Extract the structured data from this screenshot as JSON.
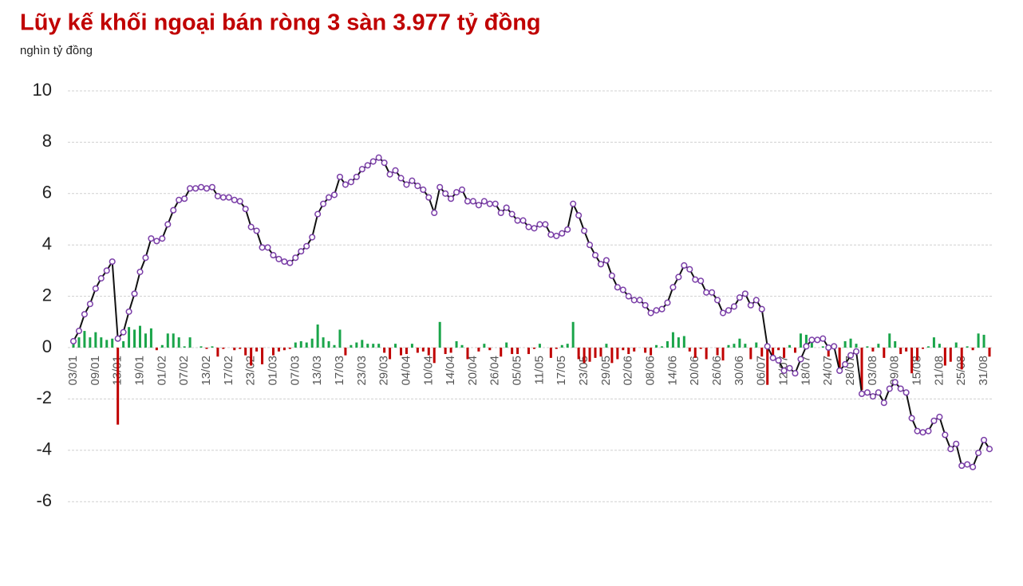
{
  "chart_data": {
    "type": "combo",
    "title": "Lũy kế khối ngoại bán ròng 3 sàn 3.977 tỷ đồng",
    "subtitle": "nghìn tỷ đồng",
    "categories": [
      "03/01",
      null,
      null,
      null,
      "09/01",
      null,
      null,
      null,
      "13/01",
      null,
      null,
      null,
      "19/01",
      null,
      null,
      null,
      "01/02",
      null,
      null,
      null,
      "07/02",
      null,
      null,
      null,
      "13/02",
      null,
      null,
      null,
      "17/02",
      null,
      null,
      null,
      "23/02",
      null,
      null,
      null,
      "01/03",
      null,
      null,
      null,
      "07/03",
      null,
      null,
      null,
      "13/03",
      null,
      null,
      null,
      "17/03",
      null,
      null,
      null,
      "23/03",
      null,
      null,
      null,
      "29/03",
      null,
      null,
      null,
      "04/04",
      null,
      null,
      null,
      "10/04",
      null,
      null,
      null,
      "14/04",
      null,
      null,
      null,
      "20/04",
      null,
      null,
      null,
      "26/04",
      null,
      null,
      null,
      "05/05",
      null,
      null,
      null,
      "11/05",
      null,
      null,
      null,
      "17/05",
      null,
      null,
      null,
      "23/05",
      null,
      null,
      null,
      "29/05",
      null,
      null,
      null,
      "02/06",
      null,
      null,
      null,
      "08/06",
      null,
      null,
      null,
      "14/06",
      null,
      null,
      null,
      "20/06",
      null,
      null,
      null,
      "26/06",
      null,
      null,
      null,
      "30/06",
      null,
      null,
      null,
      "06/07",
      null,
      null,
      null,
      "12/07",
      null,
      null,
      null,
      "18/07",
      null,
      null,
      null,
      "24/07",
      null,
      null,
      null,
      "28/07",
      null,
      null,
      null,
      "03/08",
      null,
      null,
      null,
      "09/08",
      null,
      null,
      null,
      "15/08",
      null,
      null,
      null,
      "21/08",
      null,
      null,
      null,
      "25/08",
      null,
      null,
      null,
      "31/08",
      null
    ],
    "series": [
      {
        "type": "bar",
        "color": "#1aa54a",
        "negative_color": "#c00000",
        "values": [
          0.25,
          0.4,
          0.65,
          0.4,
          0.6,
          0.4,
          0.3,
          0.35,
          -3.0,
          0.25,
          0.8,
          0.7,
          0.85,
          0.55,
          0.75,
          -0.1,
          0.1,
          0.55,
          0.55,
          0.4,
          0.05,
          0.4,
          0,
          0.05,
          -0.05,
          0.05,
          -0.35,
          -0.05,
          0,
          -0.1,
          -0.05,
          -0.3,
          -0.7,
          -0.15,
          -0.65,
          0,
          -0.3,
          -0.15,
          -0.1,
          -0.05,
          0.2,
          0.25,
          0.2,
          0.35,
          0.9,
          0.4,
          0.25,
          0.1,
          0.7,
          -0.3,
          0.1,
          0.2,
          0.3,
          0.15,
          0.15,
          0.15,
          -0.2,
          -0.45,
          0.15,
          -0.3,
          -0.25,
          0.15,
          -0.2,
          -0.15,
          -0.3,
          -0.6,
          1.0,
          -0.25,
          -0.2,
          0.25,
          0.1,
          -0.45,
          0,
          -0.15,
          0.15,
          -0.1,
          0,
          -0.35,
          0.2,
          -0.25,
          -0.25,
          0,
          -0.25,
          -0.05,
          0.15,
          0,
          -0.4,
          -0.05,
          0.1,
          0.15,
          1.0,
          -0.45,
          -0.6,
          -0.55,
          -0.4,
          -0.35,
          0.15,
          -0.6,
          -0.45,
          -0.1,
          -0.25,
          -0.15,
          0,
          -0.2,
          -0.3,
          0.1,
          0.05,
          0.25,
          0.6,
          0.4,
          0.45,
          -0.15,
          -0.4,
          -0.05,
          -0.45,
          0,
          -0.3,
          -0.5,
          0.1,
          0.15,
          0.35,
          0.15,
          -0.45,
          0.2,
          -0.35,
          -1.45,
          -0.45,
          -0.1,
          -0.4,
          0.1,
          -0.2,
          0.55,
          0.5,
          0.25,
          0,
          0.05,
          -0.35,
          0.05,
          -0.95,
          0.25,
          0.35,
          0.15,
          -1.65,
          0.05,
          -0.15,
          0.15,
          -0.4,
          0.55,
          0.25,
          -0.25,
          -0.15,
          -1.0,
          -0.5,
          -0.05,
          0.05,
          0.4,
          0.15,
          -0.7,
          -0.55,
          0.2,
          -0.85,
          0.05,
          -0.1,
          0.55,
          0.5,
          -0.35
        ]
      },
      {
        "type": "line",
        "color": "#111111",
        "marker_color": "#7b3fa8",
        "values": [
          0.25,
          0.65,
          1.3,
          1.7,
          2.3,
          2.7,
          3.0,
          3.35,
          0.35,
          0.6,
          1.4,
          2.1,
          2.95,
          3.5,
          4.25,
          4.15,
          4.25,
          4.8,
          5.35,
          5.75,
          5.8,
          6.2,
          6.2,
          6.25,
          6.2,
          6.25,
          5.9,
          5.85,
          5.85,
          5.75,
          5.7,
          5.4,
          4.7,
          4.55,
          3.9,
          3.9,
          3.6,
          3.45,
          3.35,
          3.3,
          3.5,
          3.75,
          3.95,
          4.3,
          5.2,
          5.6,
          5.85,
          5.95,
          6.65,
          6.35,
          6.45,
          6.65,
          6.95,
          7.1,
          7.25,
          7.4,
          7.2,
          6.75,
          6.9,
          6.6,
          6.35,
          6.5,
          6.3,
          6.15,
          5.85,
          5.25,
          6.25,
          6.0,
          5.8,
          6.05,
          6.15,
          5.7,
          5.7,
          5.55,
          5.7,
          5.6,
          5.6,
          5.25,
          5.45,
          5.2,
          4.95,
          4.95,
          4.7,
          4.65,
          4.8,
          4.8,
          4.4,
          4.35,
          4.45,
          4.6,
          5.6,
          5.15,
          4.55,
          4.0,
          3.6,
          3.25,
          3.4,
          2.8,
          2.35,
          2.25,
          2.0,
          1.85,
          1.85,
          1.65,
          1.35,
          1.45,
          1.5,
          1.75,
          2.35,
          2.75,
          3.2,
          3.05,
          2.65,
          2.6,
          2.15,
          2.15,
          1.85,
          1.35,
          1.45,
          1.6,
          1.95,
          2.1,
          1.65,
          1.85,
          1.5,
          0.05,
          -0.4,
          -0.5,
          -0.9,
          -0.8,
          -1.0,
          -0.45,
          0.05,
          0.3,
          0.3,
          0.35,
          0.0,
          0.05,
          -0.9,
          -0.65,
          -0.3,
          -0.15,
          -1.8,
          -1.75,
          -1.9,
          -1.75,
          -2.15,
          -1.6,
          -1.35,
          -1.6,
          -1.75,
          -2.75,
          -3.25,
          -3.3,
          -3.25,
          -2.85,
          -2.7,
          -3.4,
          -3.95,
          -3.75,
          -4.6,
          -4.55,
          -4.65,
          -4.1,
          -3.6,
          -3.95
        ]
      }
    ],
    "ylim": [
      -7,
      10
    ],
    "yticks": [
      -6,
      -4,
      -2,
      0,
      2,
      4,
      6,
      8,
      10
    ],
    "grid": true
  }
}
